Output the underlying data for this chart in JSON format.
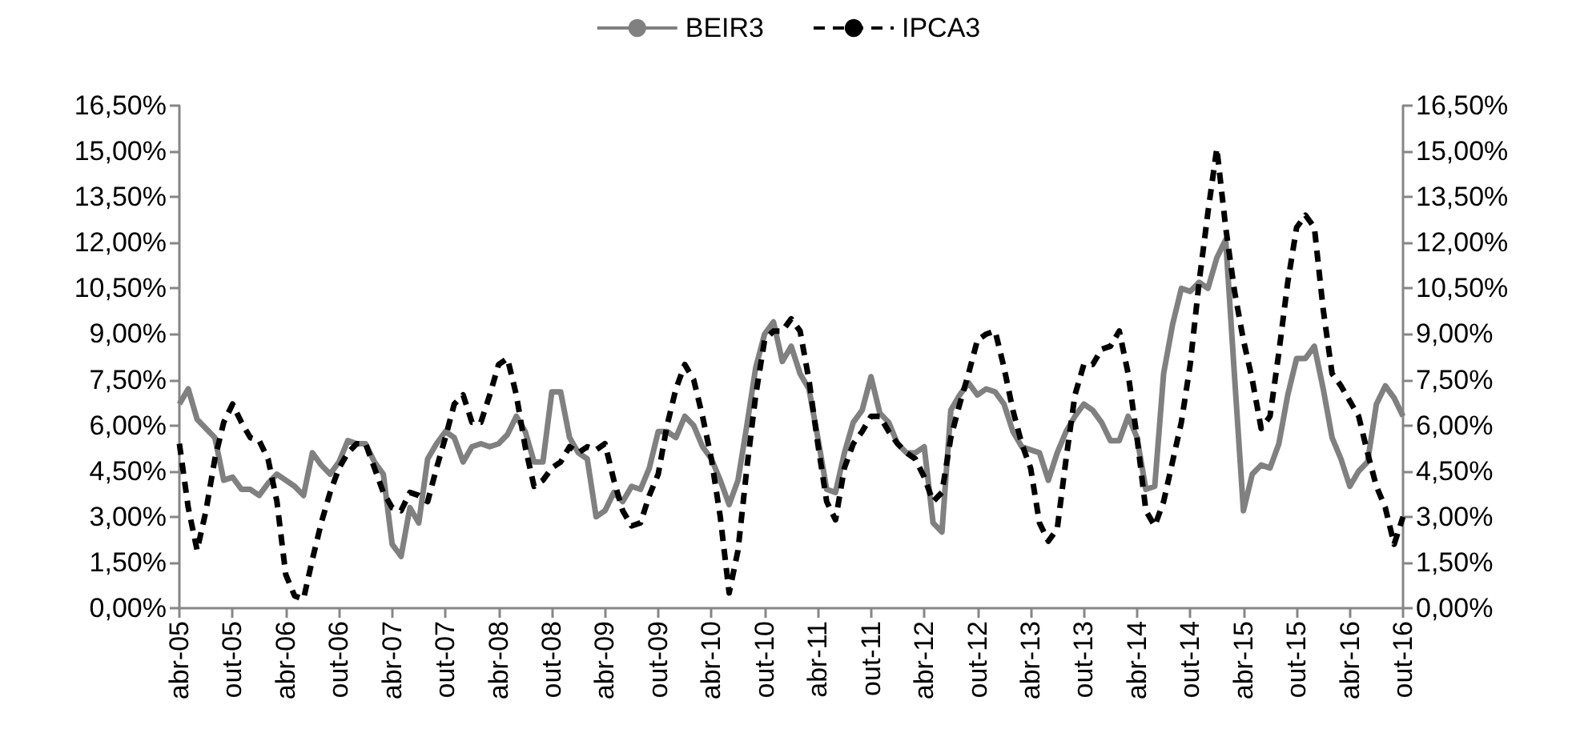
{
  "chart_data": {
    "type": "line",
    "categories": [
      "abr-05",
      null,
      null,
      null,
      null,
      null,
      "out-05",
      null,
      null,
      null,
      null,
      null,
      "abr-06",
      null,
      null,
      null,
      null,
      null,
      "out-06",
      null,
      null,
      null,
      null,
      null,
      "abr-07",
      null,
      null,
      null,
      null,
      null,
      "out-07",
      null,
      null,
      null,
      null,
      null,
      "abr-08",
      null,
      null,
      null,
      null,
      null,
      "out-08",
      null,
      null,
      null,
      null,
      null,
      "abr-09",
      null,
      null,
      null,
      null,
      null,
      "out-09",
      null,
      null,
      null,
      null,
      null,
      "abr-10",
      null,
      null,
      null,
      null,
      null,
      "out-10",
      null,
      null,
      null,
      null,
      null,
      "abr-11",
      null,
      null,
      null,
      null,
      null,
      "out-11",
      null,
      null,
      null,
      null,
      null,
      "abr-12",
      null,
      null,
      null,
      null,
      null,
      "out-12",
      null,
      null,
      null,
      null,
      null,
      "abr-13",
      null,
      null,
      null,
      null,
      null,
      "out-13",
      null,
      null,
      null,
      null,
      null,
      "abr-14",
      null,
      null,
      null,
      null,
      null,
      "out-14",
      null,
      null,
      null,
      null,
      null,
      "abr-15",
      null,
      null,
      null,
      null,
      null,
      "out-15",
      null,
      null,
      null,
      null,
      null,
      "abr-16",
      null,
      null,
      null,
      null,
      null,
      "out-16"
    ],
    "series": [
      {
        "name": "BEIR3",
        "color": "#808080",
        "line_style": "solid",
        "values": [
          6.7,
          7.2,
          6.2,
          5.9,
          5.6,
          4.2,
          4.3,
          3.9,
          3.9,
          3.7,
          4.1,
          4.4,
          4.2,
          4.0,
          3.7,
          5.1,
          4.7,
          4.4,
          4.8,
          5.5,
          5.4,
          5.4,
          4.8,
          4.4,
          2.1,
          1.7,
          3.3,
          2.8,
          4.9,
          5.4,
          5.8,
          5.6,
          4.8,
          5.3,
          5.4,
          5.3,
          5.4,
          5.7,
          6.3,
          5.8,
          4.8,
          4.8,
          7.1,
          7.1,
          5.6,
          5.1,
          4.9,
          3.0,
          3.2,
          3.8,
          3.5,
          4.0,
          3.9,
          4.6,
          5.8,
          5.8,
          5.6,
          6.3,
          6.0,
          5.3,
          4.9,
          4.2,
          3.4,
          4.2,
          6.0,
          7.9,
          9.0,
          9.4,
          8.1,
          8.6,
          7.7,
          7.2,
          5.6,
          3.9,
          3.8,
          5.1,
          6.1,
          6.5,
          7.6,
          6.4,
          6.1,
          5.4,
          5.1,
          5.1,
          5.3,
          2.8,
          2.5,
          6.5,
          7.0,
          7.4,
          7.0,
          7.2,
          7.1,
          6.7,
          5.8,
          5.3,
          5.2,
          5.1,
          4.2,
          5.1,
          5.8,
          6.3,
          6.7,
          6.5,
          6.1,
          5.5,
          5.5,
          6.3,
          5.6,
          3.9,
          4.0,
          7.7,
          9.3,
          10.5,
          10.4,
          10.7,
          10.5,
          11.5,
          12.1,
          7.6,
          3.2,
          4.4,
          4.7,
          4.6,
          5.4,
          7.0,
          8.2,
          8.2,
          8.6,
          7.2,
          5.6,
          4.9,
          4.0,
          4.5,
          4.8,
          6.7,
          7.3,
          6.9,
          6.3
        ]
      },
      {
        "name": "IPCA3",
        "color": "#000000",
        "line_style": "dashed",
        "values": [
          5.4,
          3.3,
          1.9,
          3.2,
          4.9,
          6.1,
          6.7,
          6.1,
          5.6,
          5.5,
          4.9,
          3.5,
          1.1,
          0.4,
          0.3,
          1.6,
          2.8,
          3.8,
          4.6,
          5.1,
          5.4,
          5.4,
          4.6,
          3.8,
          3.3,
          3.2,
          3.8,
          3.7,
          3.5,
          4.6,
          5.6,
          6.7,
          7.0,
          6.1,
          6.1,
          7.0,
          8.0,
          8.2,
          7.0,
          5.3,
          4.0,
          4.2,
          4.6,
          4.8,
          5.3,
          5.1,
          5.3,
          5.2,
          5.4,
          4.2,
          3.2,
          2.7,
          2.8,
          3.7,
          4.4,
          6.0,
          7.2,
          8.0,
          7.5,
          6.3,
          4.9,
          3.0,
          0.5,
          1.9,
          4.6,
          7.0,
          8.8,
          9.1,
          9.1,
          9.5,
          9.1,
          7.5,
          5.4,
          3.5,
          2.9,
          4.6,
          5.4,
          5.8,
          6.3,
          6.3,
          5.8,
          5.4,
          5.1,
          4.9,
          4.3,
          3.5,
          3.8,
          5.6,
          6.7,
          7.7,
          8.8,
          9.0,
          9.1,
          7.9,
          6.5,
          5.4,
          4.6,
          2.8,
          2.2,
          2.6,
          4.9,
          7.0,
          8.0,
          8.0,
          8.5,
          8.6,
          9.1,
          7.7,
          5.6,
          3.2,
          2.7,
          3.5,
          4.8,
          6.1,
          8.0,
          10.7,
          13.0,
          15.1,
          12.5,
          10.4,
          8.8,
          7.5,
          5.9,
          6.3,
          8.4,
          10.7,
          12.5,
          12.9,
          12.5,
          9.8,
          7.7,
          7.3,
          6.8,
          6.3,
          5.1,
          4.0,
          3.3,
          2.1,
          3.0
        ]
      }
    ],
    "ylim": [
      0,
      16.5
    ],
    "yticks": [
      {
        "value": 0,
        "label": "0,00%"
      },
      {
        "value": 1.5,
        "label": "1,50%"
      },
      {
        "value": 3,
        "label": "3,00%"
      },
      {
        "value": 4.5,
        "label": "4,50%"
      },
      {
        "value": 6,
        "label": "6,00%"
      },
      {
        "value": 7.5,
        "label": "7,50%"
      },
      {
        "value": 9,
        "label": "9,00%"
      },
      {
        "value": 10.5,
        "label": "10,50%"
      },
      {
        "value": 12,
        "label": "12,00%"
      },
      {
        "value": 13.5,
        "label": "13,50%"
      },
      {
        "value": 15,
        "label": "15,00%"
      },
      {
        "value": 16.5,
        "label": "16,50%"
      }
    ],
    "y2lim": [
      0,
      16.5
    ],
    "y2ticks": [
      {
        "value": 0,
        "label": "0,00%"
      },
      {
        "value": 1.5,
        "label": "1,50%"
      },
      {
        "value": 3,
        "label": "3,00%"
      },
      {
        "value": 4.5,
        "label": "4,50%"
      },
      {
        "value": 6,
        "label": "6,00%"
      },
      {
        "value": 7.5,
        "label": "7,50%"
      },
      {
        "value": 9,
        "label": "9,00%"
      },
      {
        "value": 10.5,
        "label": "10,50%"
      },
      {
        "value": 12,
        "label": "12,00%"
      },
      {
        "value": 13.5,
        "label": "13,50%"
      },
      {
        "value": 15,
        "label": "15,00%"
      },
      {
        "value": 16.5,
        "label": "16,50%"
      }
    ],
    "grid": false,
    "legend": "top",
    "marker": "none"
  }
}
